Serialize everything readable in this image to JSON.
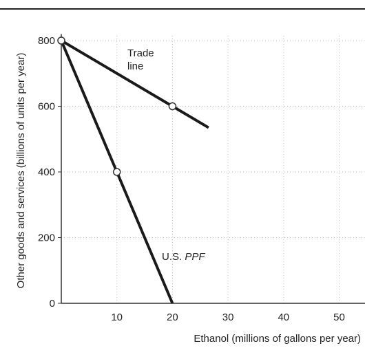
{
  "chart_data": {
    "type": "line",
    "title": "",
    "xlabel": "Ethanol (millions of gallons per year)",
    "ylabel": "Other goods and services (billions of units per year)",
    "xlim": [
      0,
      55
    ],
    "ylim": [
      0,
      820
    ],
    "x_ticks": [
      10,
      20,
      30,
      40,
      50
    ],
    "y_ticks": [
      0,
      200,
      400,
      600,
      800
    ],
    "grid": true,
    "series": [
      {
        "name": "Trade line",
        "x": [
          0,
          20,
          26.5
        ],
        "y": [
          800,
          600,
          535
        ],
        "markers": [
          {
            "x": 0,
            "y": 800
          },
          {
            "x": 20,
            "y": 600
          }
        ],
        "color": "#1a1a1a"
      },
      {
        "name": "U.S. PPF",
        "x": [
          0,
          10,
          20
        ],
        "y": [
          800,
          400,
          0
        ],
        "markers": [
          {
            "x": 10,
            "y": 400
          }
        ],
        "color": "#1a1a1a"
      }
    ],
    "annotations": {
      "trade_line": [
        "Trade",
        "line"
      ],
      "ppf_prefix": "U.S. ",
      "ppf_italic": "PPF"
    }
  }
}
